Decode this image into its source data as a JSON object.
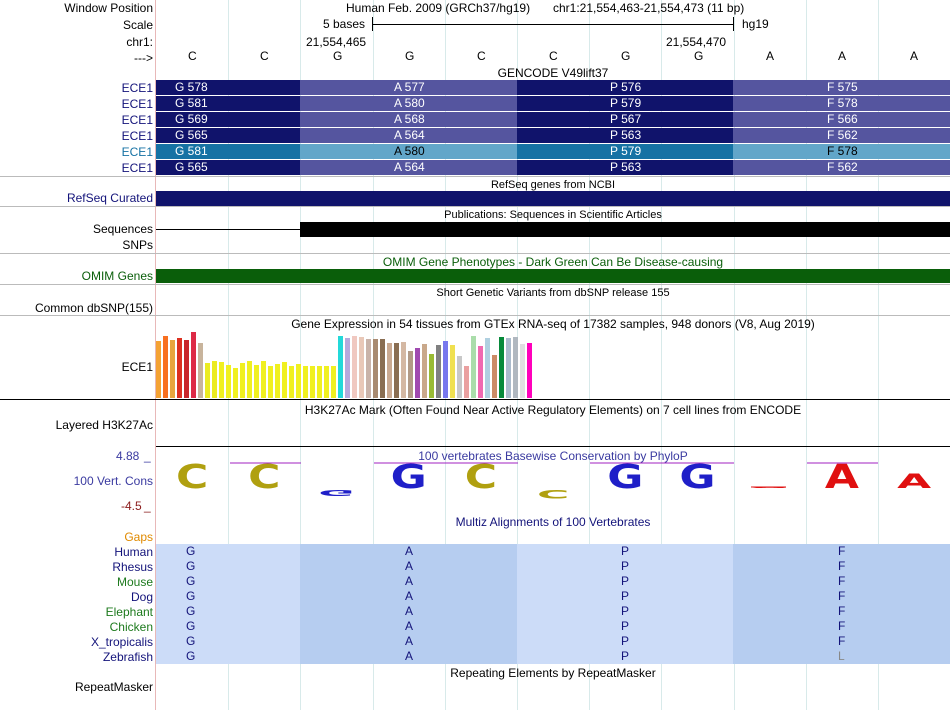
{
  "header": {
    "window_position_label": "Window Position",
    "assembly": "Human Feb. 2009 (GRCh37/hg19)",
    "position": "chr1:21,554,463-21,554,473 (11 bp)",
    "scale_label": "Scale",
    "scale_text": "5 bases",
    "db": "hg19",
    "chrom_label": "chr1:",
    "coord_left": "21,554,465",
    "coord_right": "21,554,470",
    "strand_label": "--->",
    "bases": [
      "C",
      "C",
      "G",
      "G",
      "C",
      "C",
      "G",
      "G",
      "A",
      "A",
      "A"
    ]
  },
  "gencode": {
    "title": "GENCODE V49lift37",
    "rows": [
      {
        "label": "ECE1",
        "cells": [
          "G 578",
          "A 577",
          "P 576",
          "F 575"
        ]
      },
      {
        "label": "ECE1",
        "cells": [
          "G 581",
          "A 580",
          "P 579",
          "F 578"
        ]
      },
      {
        "label": "ECE1",
        "cells": [
          "G 569",
          "A 568",
          "P 567",
          "F 566"
        ]
      },
      {
        "label": "ECE1",
        "cells": [
          "G 565",
          "A 564",
          "P 563",
          "F 562"
        ]
      },
      {
        "label": "ECE1",
        "cells": [
          "G 581",
          "A 580",
          "P 579",
          "F 578"
        ]
      },
      {
        "label": "ECE1",
        "cells": [
          "G 565",
          "A 564",
          "P 563",
          "F 562"
        ]
      }
    ]
  },
  "refseq": {
    "label": "RefSeq Curated",
    "title": "RefSeq genes from NCBI"
  },
  "publications": {
    "title": "Publications: Sequences in Scientific Articles",
    "label": "Sequences"
  },
  "snps": {
    "label": "SNPs"
  },
  "omim": {
    "title": "OMIM Gene Phenotypes - Dark Green Can Be Disease-causing",
    "label": "OMIM Genes",
    "color": "#0a5e0a"
  },
  "dbsnp": {
    "title": "Short Genetic Variants from dbSNP release 155",
    "label": "Common dbSNP(155)"
  },
  "gtex": {
    "title": "Gene Expression in 54 tissues from GTEx RNA-seq of 17382 samples, 948 donors (V8, Aug 2019)",
    "label": "ECE1",
    "max_value": 66,
    "values": [
      57,
      62,
      58,
      60,
      58,
      66,
      55,
      35,
      37,
      36,
      33,
      30,
      35,
      37,
      33,
      37,
      32,
      34,
      36,
      32,
      34,
      32,
      32,
      32,
      32,
      32,
      62,
      60,
      62,
      61,
      59,
      59,
      59,
      55,
      55,
      56,
      47,
      50,
      54,
      44,
      53,
      57,
      53,
      42,
      32,
      62,
      52,
      60,
      43,
      61,
      60,
      61,
      54,
      55
    ],
    "colors": [
      "#f4a233",
      "#f87020",
      "#e8a63e",
      "#dc3020",
      "#c9262a",
      "#dd2a46",
      "#c8b49c",
      "#ebeb22",
      "#ebeb22",
      "#f0f020",
      "#f0f020",
      "#f0f020",
      "#f0f020",
      "#f0f020",
      "#f0f020",
      "#f0f020",
      "#f0f020",
      "#f0f020",
      "#f0f020",
      "#f0f020",
      "#f0f020",
      "#f0f020",
      "#f0f020",
      "#f0f020",
      "#f0f020",
      "#f0f020",
      "#23d9d9",
      "#b6a9dd",
      "#f0c8c0",
      "#e9c8b8",
      "#c9b3a9",
      "#a88a70",
      "#8a6e52",
      "#caa990",
      "#8a6e52",
      "#d4b8a3",
      "#b29a86",
      "#a04ab0",
      "#c9a88a",
      "#99bb33",
      "#808080",
      "#7777ee",
      "#f0e050",
      "#c8c8c8",
      "#eaa0a0",
      "#aaddaa",
      "#f06ab0",
      "#b0d0e0",
      "#cc8b66",
      "#078a3a",
      "#aabbcc",
      "#b0b8c0",
      "#e0e0e0",
      "#ff00bb"
    ]
  },
  "h3k27ac": {
    "title": "H3K27Ac Mark (Often Found Near Active Regulatory Elements) on 7 cell lines from ENCODE",
    "label": "Layered H3K27Ac"
  },
  "phylop": {
    "title": "100 vertebrates Basewise Conservation by PhyloP",
    "label": "100 Vert. Cons",
    "ymax": "4.88",
    "ymin": "-4.5",
    "glyphs": [
      "C",
      "C",
      "G",
      "G",
      "C",
      "C",
      "G",
      "G",
      "A",
      "A",
      "A"
    ]
  },
  "multiz": {
    "title": "Multiz Alignments of 100 Vertebrates",
    "gaps_label": "Gaps",
    "species": [
      {
        "name": "Human",
        "aa": [
          "G",
          "A",
          "P",
          "F"
        ],
        "color": "#13137a"
      },
      {
        "name": "Rhesus",
        "aa": [
          "G",
          "A",
          "P",
          "F"
        ],
        "color": "#13137a"
      },
      {
        "name": "Mouse",
        "aa": [
          "G",
          "A",
          "P",
          "F"
        ],
        "color": "#1d7a1d"
      },
      {
        "name": "Dog",
        "aa": [
          "G",
          "A",
          "P",
          "F"
        ],
        "color": "#13137a"
      },
      {
        "name": "Elephant",
        "aa": [
          "G",
          "A",
          "P",
          "F"
        ],
        "color": "#1d7a1d"
      },
      {
        "name": "Chicken",
        "aa": [
          "G",
          "A",
          "P",
          "F"
        ],
        "color": "#1d7a1d"
      },
      {
        "name": "X_tropicalis",
        "aa": [
          "G",
          "A",
          "P",
          "F"
        ],
        "color": "#13137a"
      },
      {
        "name": "Zebrafish",
        "aa": [
          "G",
          "A",
          "P",
          "L"
        ],
        "color": "#13137a"
      }
    ]
  },
  "repeatmasker": {
    "title": "Repeating Elements by RepeatMasker",
    "label": "RepeatMasker"
  },
  "colors": {
    "gene_dark": "#10136b",
    "gene_mid": "#55559f",
    "gene_hl_dark": "#1672a4",
    "gene_hl_light": "#62a6c9",
    "aln_light": "#ccdcf8",
    "aln_dark": "#b6cdf0",
    "refseq": "#10136b"
  }
}
